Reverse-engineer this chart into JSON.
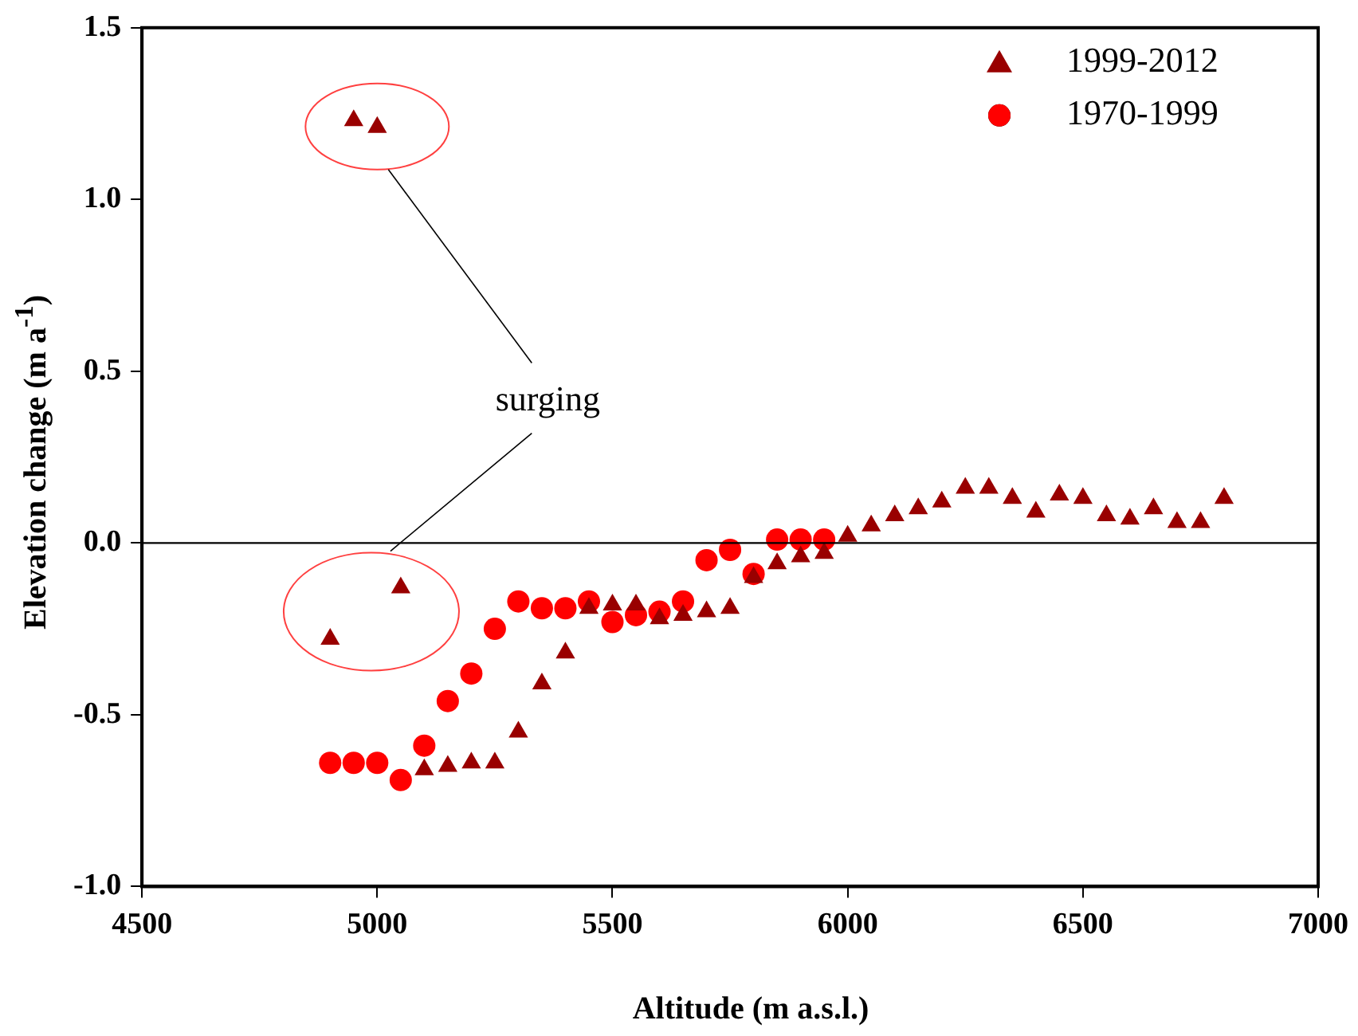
{
  "chart_data": {
    "type": "scatter",
    "xlabel": "Altitude (m a.s.l.)",
    "ylabel": "Elevation change (m a$^{-1}$)",
    "xlim": [
      4500,
      7000
    ],
    "xticks": [
      4500,
      5000,
      5500,
      6000,
      6500,
      7000
    ],
    "ylim": [
      -1.0,
      1.5
    ],
    "yticks": [
      {
        "value": -1.0,
        "label": "-1.0"
      },
      {
        "value": -0.5,
        "label": "-0.5"
      },
      {
        "value": 0,
        "label": "0.0"
      },
      {
        "value": 0.5,
        "label": "0.5"
      },
      {
        "value": 1.0,
        "label": "1.0"
      },
      {
        "value": 1.5,
        "label": "1.5"
      }
    ],
    "grid": false,
    "legend": "top right",
    "ref_lines": [
      {
        "axis": "y",
        "value": 0,
        "color": "#000000"
      }
    ],
    "annotations": [
      "surging"
    ],
    "series": [
      {
        "name": "1999-2012",
        "color": "#990000",
        "marker": "triangle",
        "x": [
          4900,
          4950,
          5000,
          5050,
          5100,
          5150,
          5200,
          5250,
          5300,
          5350,
          5400,
          5450,
          5500,
          5550,
          5600,
          5650,
          5700,
          5750,
          5800,
          5850,
          5900,
          5950,
          6000,
          6050,
          6100,
          6150,
          6200,
          6250,
          6300,
          6350,
          6400,
          6450,
          6500,
          6550,
          6600,
          6650,
          6700,
          6750,
          6800
        ],
        "values": [
          -0.28,
          1.23,
          1.21,
          -0.13,
          -0.66,
          -0.65,
          -0.64,
          -0.64,
          -0.55,
          -0.41,
          -0.32,
          -0.19,
          -0.18,
          -0.18,
          -0.22,
          -0.21,
          -0.2,
          -0.19,
          -0.1,
          -0.06,
          -0.04,
          -0.03,
          0.02,
          0.05,
          0.08,
          0.1,
          0.12,
          0.16,
          0.16,
          0.13,
          0.09,
          0.14,
          0.13,
          0.08,
          0.07,
          0.1,
          0.06,
          0.06,
          0.13
        ]
      },
      {
        "name": "1970-1999",
        "color": "#ff0000",
        "marker": "circle",
        "x": [
          4900,
          4950,
          5000,
          5050,
          5100,
          5150,
          5200,
          5250,
          5300,
          5350,
          5400,
          5450,
          5500,
          5550,
          5600,
          5650,
          5700,
          5750,
          5800,
          5850,
          5900,
          5950
        ],
        "values": [
          -0.64,
          -0.64,
          -0.64,
          -0.69,
          -0.59,
          -0.46,
          -0.38,
          -0.25,
          -0.17,
          -0.19,
          -0.19,
          -0.17,
          -0.23,
          -0.21,
          -0.2,
          -0.17,
          -0.05,
          -0.02,
          -0.09,
          0.01,
          0.01,
          0.01
        ]
      }
    ]
  }
}
